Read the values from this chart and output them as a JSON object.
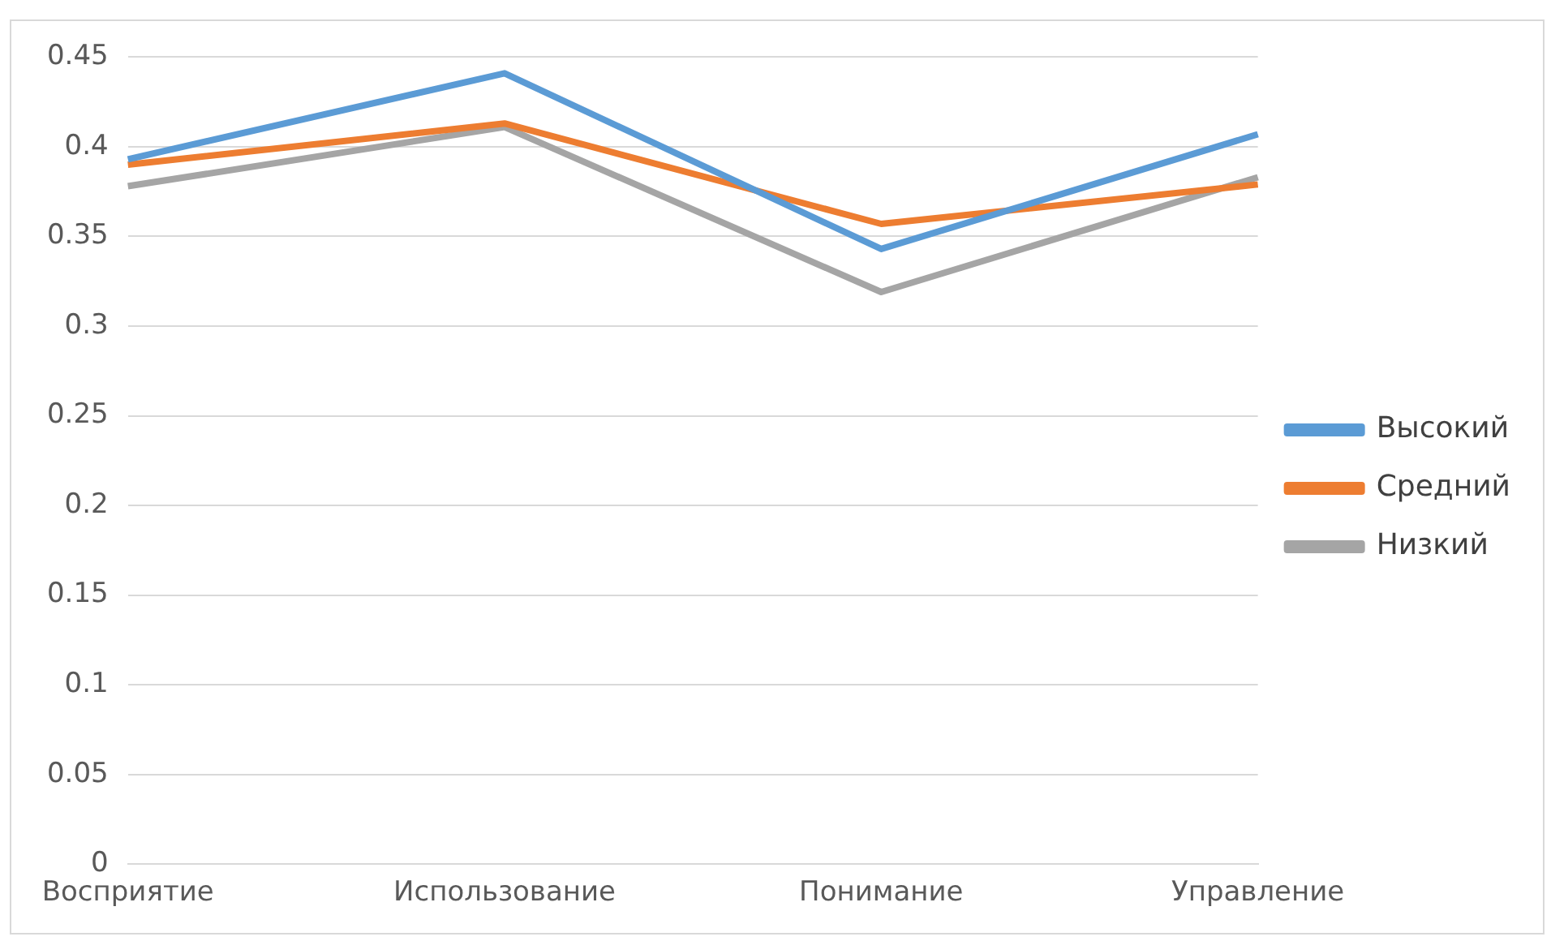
{
  "chart_data": {
    "type": "line",
    "categories": [
      "Восприятие",
      "Использование",
      "Понимание",
      "Управление"
    ],
    "series": [
      {
        "name": "Высокий",
        "color": "#5b9bd5",
        "values": [
          0.393,
          0.441,
          0.343,
          0.407
        ]
      },
      {
        "name": "Средний",
        "color": "#ed7d31",
        "values": [
          0.39,
          0.413,
          0.357,
          0.379
        ]
      },
      {
        "name": "Низкий",
        "color": "#a5a5a5",
        "values": [
          0.378,
          0.411,
          0.319,
          0.383
        ]
      }
    ],
    "ylim": [
      0,
      0.45
    ],
    "yticks": [
      0,
      0.05,
      0.1,
      0.15,
      0.2,
      0.25,
      0.3,
      0.35,
      0.4,
      0.45
    ],
    "grid": "y",
    "legend": "right",
    "marker": "none",
    "line_style": "solid"
  }
}
